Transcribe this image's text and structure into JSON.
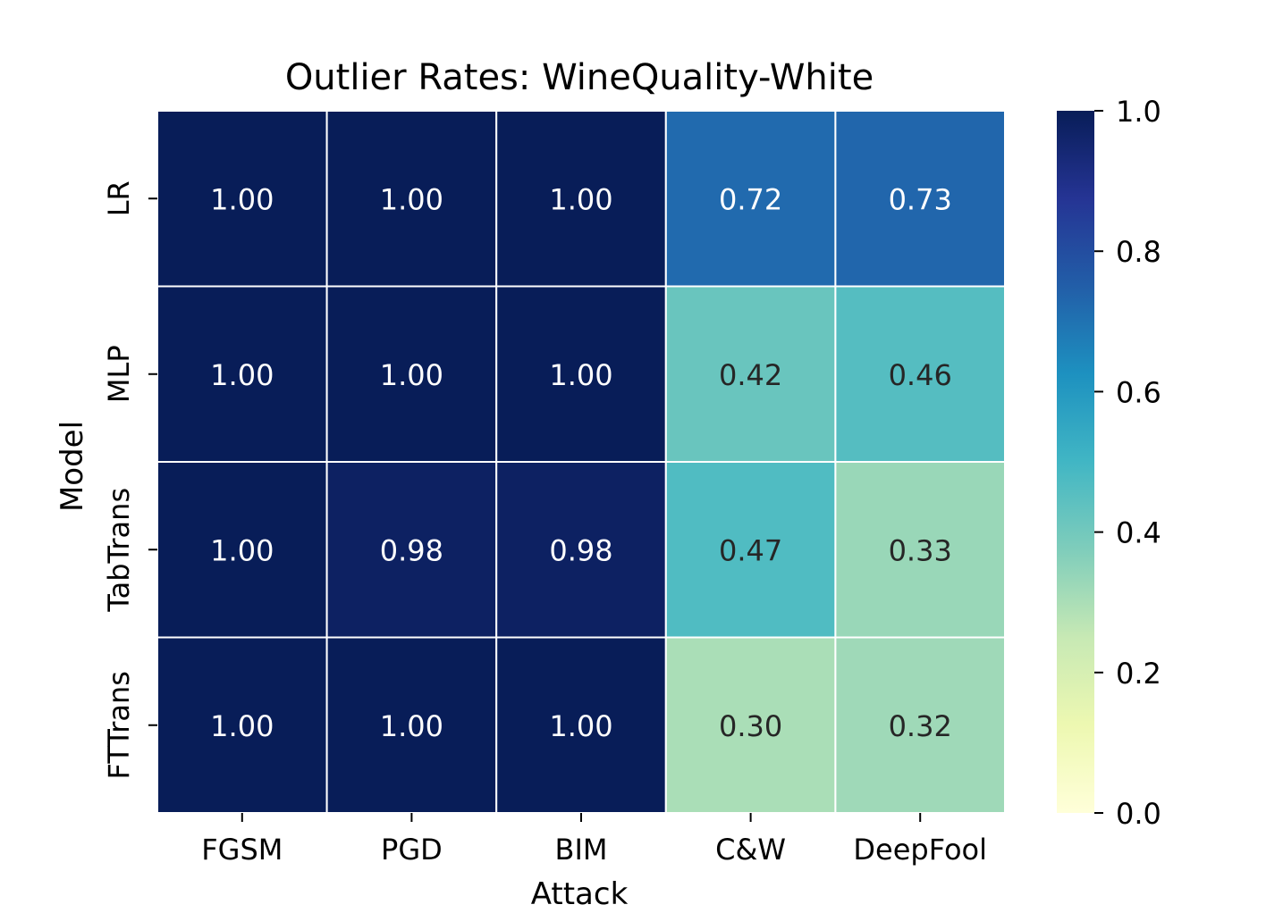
{
  "chart_data": {
    "type": "heatmap",
    "title": "Outlier Rates: WineQuality-White",
    "xlabel": "Attack",
    "ylabel": "Model",
    "x_categories": [
      "FGSM",
      "PGD",
      "BIM",
      "C&W",
      "DeepFool"
    ],
    "y_categories": [
      "LR",
      "MLP",
      "TabTrans",
      "FTTrans"
    ],
    "values": [
      [
        1.0,
        1.0,
        1.0,
        0.72,
        0.73
      ],
      [
        1.0,
        1.0,
        1.0,
        0.42,
        0.46
      ],
      [
        1.0,
        0.98,
        0.98,
        0.47,
        0.33
      ],
      [
        1.0,
        1.0,
        1.0,
        0.3,
        0.32
      ]
    ],
    "value_labels": [
      [
        "1.00",
        "1.00",
        "1.00",
        "0.72",
        "0.73"
      ],
      [
        "1.00",
        "1.00",
        "1.00",
        "0.42",
        "0.46"
      ],
      [
        "1.00",
        "0.98",
        "0.98",
        "0.47",
        "0.33"
      ],
      [
        "1.00",
        "1.00",
        "1.00",
        "0.30",
        "0.32"
      ]
    ],
    "colorbar": {
      "range": [
        0.0,
        1.0
      ],
      "ticks": [
        0.0,
        0.2,
        0.4,
        0.6,
        0.8,
        1.0
      ],
      "tick_labels": [
        "0.0",
        "0.2",
        "0.4",
        "0.6",
        "0.8",
        "1.0"
      ],
      "colormap": "YlGnBu",
      "stops": [
        "#ffffd9",
        "#edf8b1",
        "#c7e9b4",
        "#7fcdbb",
        "#41b6c4",
        "#1d91c0",
        "#225ea8",
        "#253494",
        "#081d58"
      ]
    },
    "legend_placement": "right",
    "grid": false
  }
}
